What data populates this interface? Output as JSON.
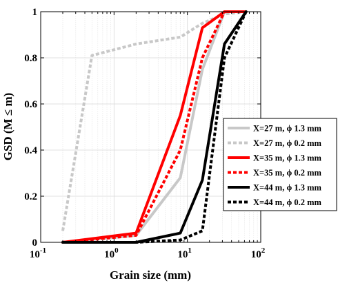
{
  "chart_data": {
    "type": "line",
    "xlabel": "Grain size (mm)",
    "ylabel": "GSD (M ≤ m)",
    "xscale": "log",
    "xlim": [
      0.1,
      100
    ],
    "ylim": [
      0,
      1
    ],
    "grid": true,
    "legend_placement": "right",
    "x_tick_labels": [
      {
        "base": "10",
        "exp": "-1"
      },
      {
        "base": "10",
        "exp": "0"
      },
      {
        "base": "10",
        "exp": "1"
      },
      {
        "base": "10",
        "exp": "2"
      }
    ],
    "y_tick_labels": [
      "0",
      "0.2",
      "0.4",
      "0.6",
      "0.8",
      "1"
    ],
    "series": [
      {
        "name": "X=27 m, ϕ 1.3 mm",
        "color": "#c8c8c8",
        "style": "solid",
        "points": [
          [
            0.2,
            0.0
          ],
          [
            2,
            0.03
          ],
          [
            8,
            0.28
          ],
          [
            16,
            0.75
          ],
          [
            32,
            1.0
          ],
          [
            63,
            1.0
          ]
        ]
      },
      {
        "name": "X=27 m, ϕ 0.2 mm",
        "color": "#c8c8c8",
        "style": "dotted",
        "points": [
          [
            0.2,
            0.05
          ],
          [
            0.5,
            0.81
          ],
          [
            2,
            0.86
          ],
          [
            8,
            0.89
          ],
          [
            16,
            0.95
          ],
          [
            32,
            0.99
          ],
          [
            63,
            1.0
          ]
        ]
      },
      {
        "name": "X=35 m, ϕ 1.3 mm",
        "color": "#ff0000",
        "style": "solid",
        "points": [
          [
            0.2,
            0.0
          ],
          [
            2,
            0.04
          ],
          [
            8,
            0.55
          ],
          [
            16,
            0.93
          ],
          [
            32,
            1.0
          ],
          [
            63,
            1.0
          ]
        ]
      },
      {
        "name": "X=35 m, ϕ 0.2 mm",
        "color": "#ff0000",
        "style": "dotted",
        "points": [
          [
            0.2,
            0.0
          ],
          [
            2,
            0.03
          ],
          [
            8,
            0.4
          ],
          [
            16,
            0.8
          ],
          [
            32,
            1.0
          ],
          [
            63,
            1.0
          ]
        ]
      },
      {
        "name": "X=44 m, ϕ 1.3 mm",
        "color": "#000000",
        "style": "solid",
        "points": [
          [
            0.2,
            0.0
          ],
          [
            2,
            0.0
          ],
          [
            8,
            0.04
          ],
          [
            16,
            0.27
          ],
          [
            32,
            0.86
          ],
          [
            63,
            1.0
          ]
        ]
      },
      {
        "name": "X=44 m, ϕ 0.2 mm",
        "color": "#000000",
        "style": "dotted",
        "points": [
          [
            0.2,
            0.0
          ],
          [
            2,
            0.0
          ],
          [
            8,
            0.01
          ],
          [
            16,
            0.05
          ],
          [
            32,
            0.8
          ],
          [
            63,
            1.0
          ]
        ]
      }
    ]
  }
}
